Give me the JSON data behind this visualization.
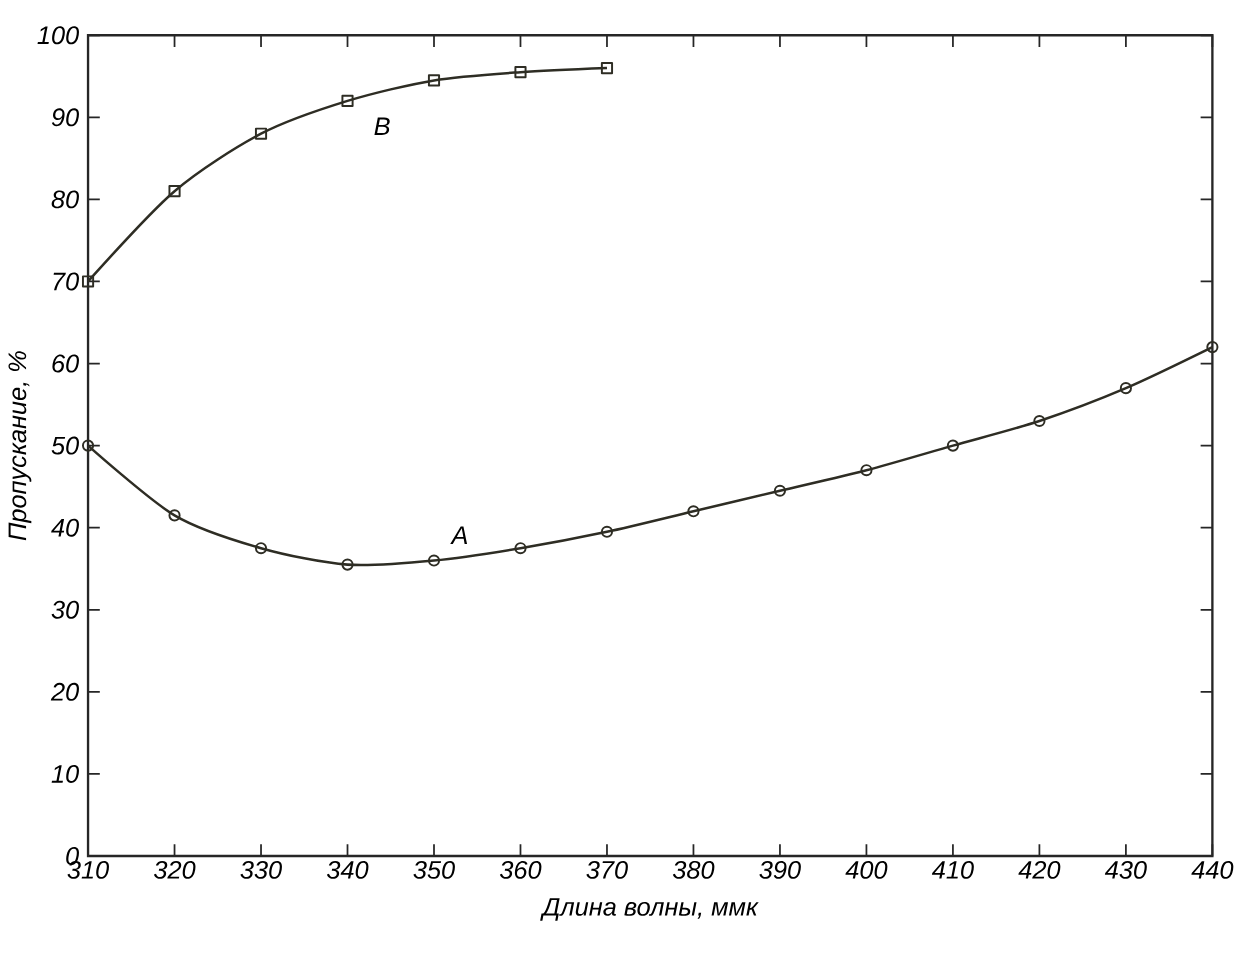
{
  "chart_data": {
    "type": "line",
    "xlabel": "Длина волны, ммк",
    "ylabel": "Пропускание, %",
    "xlim": [
      310,
      440
    ],
    "xticks": [
      310,
      320,
      330,
      340,
      350,
      360,
      370,
      380,
      390,
      400,
      410,
      420,
      430,
      440
    ],
    "ylim": [
      0,
      100
    ],
    "yticks": [
      0,
      10,
      20,
      30,
      40,
      50,
      60,
      70,
      80,
      90,
      100
    ],
    "grid": false,
    "legend": false,
    "line_style": "solid",
    "series": [
      {
        "name": "A",
        "color": "#2e2d24",
        "marker": "circle",
        "x": [
          310,
          320,
          330,
          340,
          350,
          360,
          370,
          380,
          390,
          400,
          410,
          420,
          430,
          440
        ],
        "values": [
          50,
          41.5,
          37.5,
          35.5,
          36,
          37.5,
          39.5,
          42,
          44.5,
          47,
          50,
          53,
          57,
          62
        ]
      },
      {
        "name": "B",
        "color": "#2e2d24",
        "marker": "square",
        "x": [
          310,
          320,
          330,
          340,
          350,
          360,
          370
        ],
        "values": [
          70,
          81,
          88,
          92,
          94.5,
          95.5,
          96
        ]
      }
    ]
  }
}
